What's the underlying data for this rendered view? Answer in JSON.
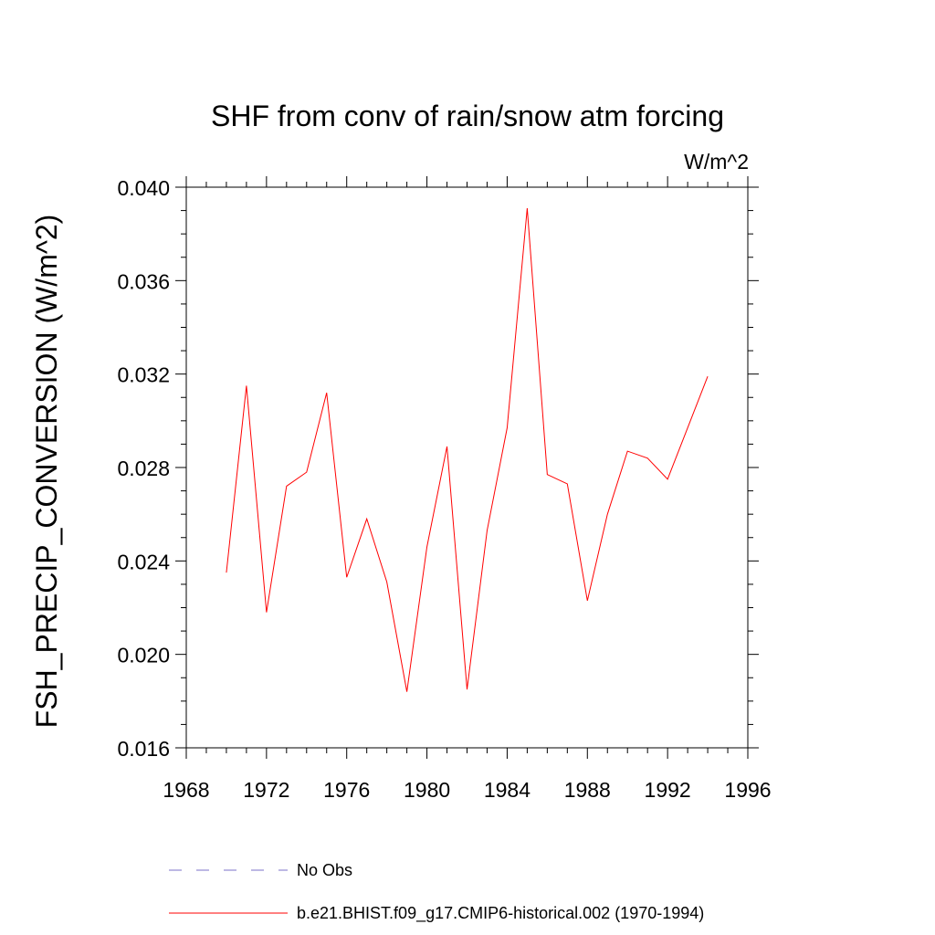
{
  "chart_data": {
    "type": "line",
    "title": "SHF from conv of rain/snow atm forcing",
    "units_label": "W/m^2",
    "ylabel": "FSH_PRECIP_CONVERSION  (W/m^2)",
    "xlabel": "",
    "xlim": [
      1968,
      1996
    ],
    "ylim": [
      0.016,
      0.04
    ],
    "x_ticks": [
      "1968",
      "1972",
      "1976",
      "1980",
      "1984",
      "1988",
      "1992",
      "1996"
    ],
    "y_ticks": [
      "0.016",
      "0.020",
      "0.024",
      "0.028",
      "0.032",
      "0.036",
      "0.040"
    ],
    "grid": false,
    "legend_placement": "bottom",
    "x": [
      1970,
      1971,
      1972,
      1973,
      1974,
      1975,
      1976,
      1977,
      1978,
      1979,
      1980,
      1981,
      1982,
      1983,
      1984,
      1985,
      1986,
      1987,
      1988,
      1989,
      1990,
      1991,
      1992,
      1993,
      1994
    ],
    "series": [
      {
        "name": "b.e21.BHIST.f09_g17.CMIP6-historical.002 (1970-1994)",
        "color": "#ff0000",
        "style": "solid",
        "values": [
          0.0235,
          0.0315,
          0.0218,
          0.0272,
          0.0278,
          0.0312,
          0.0233,
          0.0258,
          0.0231,
          0.0184,
          0.0246,
          0.0289,
          0.0185,
          0.0253,
          0.0297,
          0.0391,
          0.0277,
          0.0273,
          0.0223,
          0.026,
          0.0287,
          0.0284,
          0.0275,
          0.0297,
          0.0319
        ]
      }
    ],
    "legend": [
      {
        "label": "No Obs",
        "color": "#7b72c8",
        "style": "dashed"
      },
      {
        "label": "b.e21.BHIST.f09_g17.CMIP6-historical.002 (1970-1994)",
        "color": "#ff0000",
        "style": "solid"
      }
    ]
  }
}
